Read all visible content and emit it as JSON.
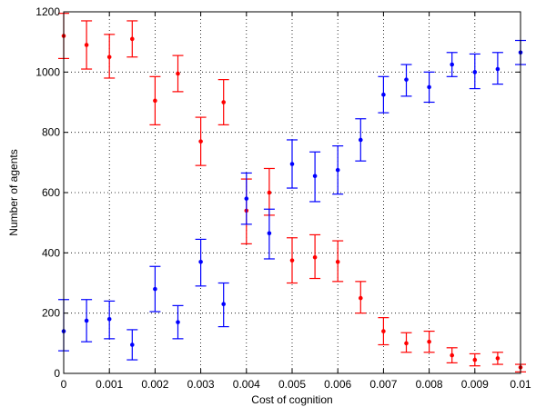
{
  "chart_data": {
    "type": "scatter",
    "title": "",
    "xlabel": "Cost of cognition",
    "ylabel": "Number of agents",
    "xlim": [
      0,
      0.01
    ],
    "ylim": [
      0,
      1200
    ],
    "xticks": [
      0,
      0.001,
      0.002,
      0.003,
      0.004,
      0.005,
      0.006,
      0.007,
      0.008,
      0.009,
      0.01
    ],
    "xtick_labels": [
      "0",
      "0.001",
      "0.002",
      "0.003",
      "0.004",
      "0.005",
      "0.006",
      "0.007",
      "0.008",
      "0.009",
      "0.01"
    ],
    "yticks": [
      0,
      200,
      400,
      600,
      800,
      1000,
      1200
    ],
    "ytick_labels": [
      "0",
      "200",
      "400",
      "600",
      "800",
      "1000",
      "1200"
    ],
    "grid": true,
    "legend": "none",
    "error_bars": true,
    "x": [
      0,
      0.0005,
      0.001,
      0.0015,
      0.002,
      0.0025,
      0.003,
      0.0035,
      0.004,
      0.0045,
      0.005,
      0.0055,
      0.006,
      0.0065,
      0.007,
      0.0075,
      0.008,
      0.0085,
      0.009,
      0.0095,
      0.01
    ],
    "series": [
      {
        "color": "#ff0000",
        "values": [
          1120,
          1090,
          1050,
          1110,
          905,
          995,
          770,
          900,
          540,
          600,
          375,
          385,
          370,
          250,
          140,
          100,
          105,
          60,
          45,
          50,
          20
        ],
        "lower": [
          1045,
          1010,
          980,
          1050,
          825,
          935,
          690,
          825,
          430,
          525,
          300,
          315,
          305,
          200,
          95,
          70,
          70,
          35,
          25,
          30,
          5
        ],
        "upper": [
          1195,
          1170,
          1125,
          1170,
          985,
          1055,
          850,
          975,
          645,
          680,
          450,
          460,
          440,
          305,
          185,
          135,
          140,
          85,
          65,
          70,
          30
        ]
      },
      {
        "color": "#0000ff",
        "values": [
          140,
          175,
          180,
          95,
          280,
          170,
          370,
          230,
          580,
          465,
          695,
          655,
          675,
          775,
          925,
          975,
          950,
          1025,
          1000,
          1010,
          1065
        ],
        "lower": [
          75,
          105,
          115,
          45,
          205,
          115,
          290,
          155,
          495,
          380,
          615,
          570,
          595,
          705,
          865,
          920,
          900,
          985,
          945,
          960,
          1025
        ],
        "upper": [
          245,
          245,
          240,
          145,
          355,
          225,
          445,
          300,
          665,
          545,
          775,
          735,
          755,
          845,
          985,
          1025,
          1000,
          1065,
          1060,
          1065,
          1105
        ]
      }
    ]
  }
}
